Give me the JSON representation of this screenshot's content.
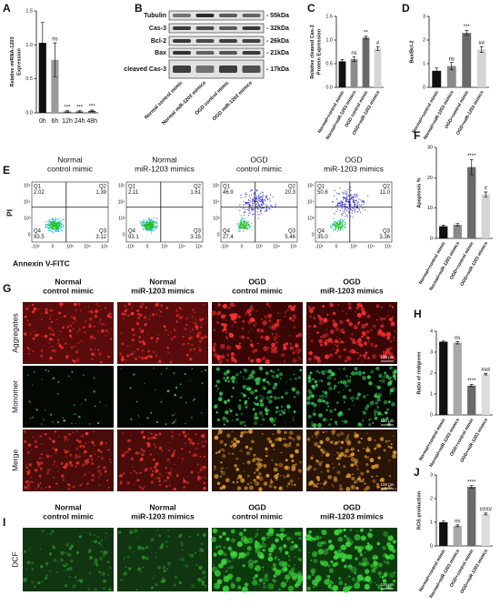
{
  "chart_data": [
    {
      "panel": "A",
      "type": "bar",
      "ylabel": [
        "Relative miRNA-1203",
        "Expression"
      ],
      "categories": [
        "0h",
        "6h",
        "12h",
        "24h",
        "48h"
      ],
      "values": [
        1.03,
        0.78,
        0.02,
        0.02,
        0.03
      ],
      "errors": [
        0.3,
        0.25,
        0.01,
        0.01,
        0.01
      ],
      "annotations": [
        null,
        "ns",
        "***",
        "***",
        "***"
      ],
      "colors": [
        "#111111",
        "#9a9a9a",
        "#555555",
        "#555555",
        "#555555"
      ],
      "ylim": [
        0,
        1.5
      ],
      "yticks": [
        {
          "value": 0,
          "label": "0.0"
        },
        0.5,
        {
          "value": 1,
          "label": "1.0"
        },
        1.5
      ]
    },
    {
      "panel": "C",
      "type": "bar",
      "ylabel": [
        "Relative cleaved Cas-3",
        "Protein Expression"
      ],
      "categories": [
        "Normal+control mimic",
        "Normal+miR-1203 mimics",
        "OGD control mimic",
        "OGD+miR-1203 mimics"
      ],
      "values": [
        0.55,
        0.6,
        1.05,
        0.82
      ],
      "errors": [
        0.04,
        0.05,
        0.03,
        0.04
      ],
      "annotations": [
        null,
        "ns",
        "**",
        "#"
      ],
      "colors": [
        "#111111",
        "#8a8a8a",
        "#6a6a6a",
        "#d4d4d4"
      ],
      "ylim": [
        0,
        1.5
      ],
      "yticks": [
        {
          "value": 0,
          "label": "0.0"
        },
        0.5,
        {
          "value": 1,
          "label": "1.0"
        },
        1.5
      ]
    },
    {
      "panel": "D",
      "type": "bar",
      "ylabel": [
        "Bax/Bcl-2"
      ],
      "categories": [
        "Normal+control mimic",
        "Normal+miR-1203 mimics",
        "OGD+control mimic",
        "OGD+miR-1203 mimics"
      ],
      "values": [
        0.7,
        0.9,
        2.3,
        1.6
      ],
      "errors": [
        0.12,
        0.15,
        0.1,
        0.12
      ],
      "annotations": [
        null,
        "ns",
        "***",
        "##"
      ],
      "colors": [
        "#111111",
        "#8a8a8a",
        "#6a6a6a",
        "#d4d4d4"
      ],
      "ylim": [
        0,
        3
      ],
      "yticks": [
        0,
        1,
        2,
        3
      ]
    },
    {
      "panel": "F",
      "type": "bar",
      "ylabel": [
        "Apoptosis %"
      ],
      "categories": [
        "Normal+control mimic",
        "Normal+miR-1203 mimics",
        "OGD+control mimic",
        "OGD+miR-1203 mimics"
      ],
      "values": [
        4,
        4.5,
        23.5,
        14.5
      ],
      "errors": [
        0.4,
        0.4,
        2.5,
        0.8
      ],
      "annotations": [
        null,
        null,
        "****",
        "#"
      ],
      "colors": [
        "#111111",
        "#8a8a8a",
        "#6a6a6a",
        "#d4d4d4"
      ],
      "ylim": [
        0,
        30
      ],
      "yticks": [
        0,
        10,
        20,
        30
      ]
    },
    {
      "panel": "H",
      "type": "bar",
      "ylabel": [
        "Ratio of red/green"
      ],
      "categories": [
        "Normal+control mimic",
        "Normal+miR-1203 mimics",
        "OGD+control mimic",
        "OGD+miR-1203 mimics"
      ],
      "values": [
        3.5,
        3.45,
        1.4,
        1.95
      ],
      "errors": [
        0.03,
        0.06,
        0.05,
        0.04
      ],
      "annotations": [
        null,
        "ns",
        "****",
        "###"
      ],
      "colors": [
        "#111111",
        "#a8a8a8",
        "#6a6a6a",
        "#dcdcdc"
      ],
      "ylim": [
        0,
        4
      ],
      "yticks": [
        0,
        1,
        2,
        3,
        4
      ]
    },
    {
      "panel": "J",
      "type": "bar",
      "ylabel": [
        "ROS production"
      ],
      "categories": [
        "Normal+control mimic",
        "Normal+miR-1203 mimics",
        "OGD+control mimic",
        "OGD+miR-1203 mimics"
      ],
      "values": [
        1.0,
        0.85,
        2.5,
        1.35
      ],
      "errors": [
        0.05,
        0.04,
        0.05,
        0.04
      ],
      "annotations": [
        null,
        "ns",
        "****",
        "####"
      ],
      "colors": [
        "#111111",
        "#a8a8a8",
        "#6a6a6a",
        "#dcdcdc"
      ],
      "ylim": [
        0,
        3
      ],
      "yticks": [
        0,
        1,
        2,
        3
      ]
    }
  ],
  "blot": {
    "panel": "B",
    "lanes": [
      "Normal control mimic",
      "Normal miR-1203 mimics",
      "OGD control mimic",
      "OGD miR-1203 mimics"
    ],
    "rows": [
      {
        "label": "Tubulin",
        "size": "- 55kDa"
      },
      {
        "label": "Cas-3",
        "size": "- 32kDa"
      },
      {
        "label": "Bcl-2",
        "size": "- 26kDa"
      },
      {
        "label": "Bax",
        "size": "- 21kDa"
      },
      {
        "label": "cleaved Cas-3",
        "size": "- 17kDa"
      }
    ]
  },
  "flow": {
    "panel": "E",
    "ylabel": "PI",
    "xlabel": "Annexin V-FITC",
    "yticks": [
      "10⁵",
      "10⁴",
      "10³",
      "0"
    ],
    "xticks": [
      "-10³",
      "0",
      "10³",
      "10⁴",
      "10⁵"
    ],
    "columns": [
      {
        "title": [
          "Normal",
          "control mimic"
        ],
        "quadrants": [
          {
            "name": "Q1",
            "value": "2.02"
          },
          {
            "name": "Q2",
            "value": "1.39"
          },
          {
            "name": "Q3",
            "value": "3.12"
          },
          {
            "name": "Q4",
            "value": "93.5"
          }
        ]
      },
      {
        "title": [
          "Normal",
          "miR-1203 mimics"
        ],
        "quadrants": [
          {
            "name": "Q1",
            "value": "2.11"
          },
          {
            "name": "Q2",
            "value": "1.61"
          },
          {
            "name": "Q3",
            "value": "3.15"
          },
          {
            "name": "Q4",
            "value": "93.1"
          }
        ]
      },
      {
        "title": [
          "OGD",
          "control mimic"
        ],
        "quadrants": [
          {
            "name": "Q1",
            "value": "46.9"
          },
          {
            "name": "Q2",
            "value": "20.3"
          },
          {
            "name": "Q3",
            "value": "5.46"
          },
          {
            "name": "Q4",
            "value": "27.4"
          }
        ]
      },
      {
        "title": [
          "OGD",
          "miR-1203 mimics"
        ],
        "quadrants": [
          {
            "name": "Q1",
            "value": "50.6"
          },
          {
            "name": "Q2",
            "value": "11.0"
          },
          {
            "name": "Q3",
            "value": "3.36"
          },
          {
            "name": "Q4",
            "value": "35.0"
          }
        ]
      }
    ]
  },
  "jc1": {
    "panel": "G",
    "columns": [
      [
        "Normal",
        "control mimic"
      ],
      [
        "Normal",
        "miR-1203 mimics"
      ],
      [
        "OGD",
        "control mimic"
      ],
      [
        "OGD",
        "miR-1203 mimics"
      ]
    ],
    "rows": [
      "Aggregates",
      "Monomer",
      "Merge"
    ],
    "scale_bar": "100 μm"
  },
  "dcf": {
    "panel": "I",
    "columns": [
      [
        "Normal",
        "control mimic"
      ],
      [
        "Normal",
        "miR-1203 mimics"
      ],
      [
        "OGD",
        "control mimic"
      ],
      [
        "OGD",
        "miR-1203 mimics"
      ]
    ],
    "rows": [
      "DCF"
    ],
    "scale_bar": "100 μm"
  }
}
